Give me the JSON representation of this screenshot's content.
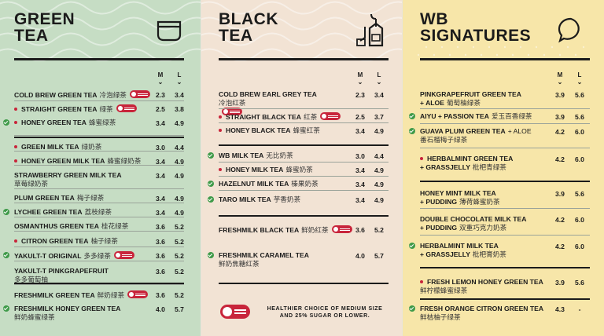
{
  "columns": [
    {
      "title_lines": [
        "GREEN",
        "TEA"
      ],
      "size_labels": [
        "M",
        "L"
      ],
      "items": [
        {
          "name": "COLD BREW GREEN TEA",
          "zh": "冷泡绿茶",
          "m": "2.3",
          "l": "3.4",
          "badge": true
        },
        {
          "name": "STRAIGHT GREEN TEA",
          "zh": "绿茶",
          "m": "2.5",
          "l": "3.8",
          "badge": true,
          "dot": true
        },
        {
          "name": "HONEY GREEN TEA",
          "zh": "蜂蜜绿茶",
          "m": "3.4",
          "l": "4.9",
          "dot": true,
          "check": true
        },
        {
          "name": "GREEN MILK TEA",
          "zh": "绿奶茶",
          "m": "3.0",
          "l": "4.4",
          "dot": true
        },
        {
          "name": "HONEY GREEN MILK TEA",
          "zh": "蜂蜜绿奶茶",
          "m": "3.4",
          "l": "4.9",
          "dot": true
        },
        {
          "name": "STRAWBERRY GREEN MILK TEA",
          "zh": "草莓绿奶茶",
          "m": "3.4",
          "l": "4.9"
        },
        {
          "name": "PLUM GREEN TEA",
          "zh": "梅子绿茶",
          "m": "3.4",
          "l": "4.9"
        },
        {
          "name": "LYCHEE GREEN TEA",
          "zh": "荔枝绿茶",
          "m": "3.4",
          "l": "4.9",
          "check": true
        },
        {
          "name": "OSMANTHUS GREEN TEA",
          "zh": "桂花绿茶",
          "m": "3.6",
          "l": "5.2"
        },
        {
          "name": "CITRON GREEN TEA",
          "zh": "柚子绿茶",
          "m": "3.6",
          "l": "5.2",
          "dot": true
        },
        {
          "name": "YAKULT-T ORIGINAL",
          "zh": "多多绿茶",
          "m": "3.6",
          "l": "5.2",
          "badge": true,
          "check": true
        },
        {
          "name": "YAKULT-T PINKGRAPEFRUIT",
          "zh": "多多葡萄柚",
          "m": "3.6",
          "l": "5.2"
        },
        {
          "name": "FRESHMILK GREEN TEA",
          "zh": "鲜奶绿茶",
          "m": "3.6",
          "l": "5.2",
          "badge": true
        },
        {
          "name": "FRESHMILK HONEY GREEN TEA",
          "zh": "鲜奶蜂蜜绿茶",
          "m": "4.0",
          "l": "5.7",
          "check": true
        }
      ]
    },
    {
      "title_lines": [
        "BLACK",
        "TEA"
      ],
      "size_labels": [
        "M",
        "L"
      ],
      "items": [
        {
          "name": "COLD BREW EARL GREY TEA",
          "zh": "冷泡红茶",
          "m": "2.3",
          "l": "3.4",
          "badge": true
        },
        {
          "name": "STRAIGHT BLACK TEA",
          "zh": "红茶",
          "m": "2.5",
          "l": "3.7",
          "badge": true,
          "dot": true
        },
        {
          "name": "HONEY BLACK TEA",
          "zh": "蜂蜜红茶",
          "m": "3.4",
          "l": "4.9",
          "dot": true
        },
        {
          "name": "WB MILK TEA",
          "zh": "无比奶茶",
          "m": "3.0",
          "l": "4.4",
          "check": true
        },
        {
          "name": "HONEY MILK TEA",
          "zh": "蜂蜜奶茶",
          "m": "3.4",
          "l": "4.9",
          "dot": true
        },
        {
          "name": "HAZELNUT MILK TEA",
          "zh": "榛果奶茶",
          "m": "3.4",
          "l": "4.9",
          "check": true
        },
        {
          "name": "TARO MILK TEA",
          "zh": "芋香奶茶",
          "m": "3.4",
          "l": "4.9",
          "check": true
        },
        {
          "name": "FRESHMILK BLACK TEA",
          "zh": "鲜奶红茶",
          "m": "3.6",
          "l": "5.2",
          "badge": true
        },
        {
          "name": "FRESHMILK CARAMEL TEA",
          "zh": "鲜奶焦糖红茶",
          "m": "4.0",
          "l": "5.7",
          "check": true
        }
      ],
      "footer": {
        "line1": "HEALTHIER CHOICE OF MEDIUM SIZE",
        "line2": "AND 25% SUGAR OR LOWER."
      }
    },
    {
      "title_lines": [
        "WB",
        "SIGNATURES"
      ],
      "size_labels": [
        "M",
        "L"
      ],
      "items": [
        {
          "name": "PINKGRAPEFRUIT GREEN TEA",
          "sub_plus": "+ ALOE",
          "zh": "葡萄柚绿茶",
          "m": "3.9",
          "l": "5.6"
        },
        {
          "name": "AIYU + PASSION TEA",
          "zh": "爱玉百香绿茶",
          "m": "3.9",
          "l": "5.6",
          "check": true
        },
        {
          "name": "GUAVA PLUM GREEN TEA",
          "name_plus": "+ ALOE",
          "zh": "番石榴梅子绿茶",
          "m": "4.2",
          "l": "6.0",
          "check": true
        },
        {
          "name": "HERBALMINT GREEN TEA",
          "sub_plus": "+ GRASSJELLY",
          "zh": "枇杷青绿茶",
          "m": "4.2",
          "l": "6.0",
          "dot": true
        },
        {
          "name": "HONEY MINT MILK TEA",
          "sub_plus": "+ PUDDING",
          "zh": "薄荷蜂蜜奶茶",
          "m": "3.9",
          "l": "5.6"
        },
        {
          "name": "DOUBLE CHOCOLATE MILK TEA",
          "sub_plus": "+ PUDDING",
          "zh": "双重巧克力奶茶",
          "m": "4.2",
          "l": "6.0"
        },
        {
          "name": "HERBALMINT MILK TEA",
          "sub_plus": "+ GRASSJELLY",
          "zh": "枇杷膏奶茶",
          "m": "4.2",
          "l": "6.0",
          "check": true
        },
        {
          "name": "FRESH LEMON HONEY GREEN TEA",
          "zh": "鲜柠檬蜂蜜绿茶",
          "m": "3.9",
          "l": "5.6",
          "dot": true
        },
        {
          "name": "FRESH ORANGE CITRON GREEN TEA",
          "zh": "鲜桔柚子绿茶",
          "m": "4.3",
          "l": "-",
          "check": true
        }
      ]
    }
  ],
  "colors": {
    "green_panel": "#c6ddc4",
    "black_panel": "#f2e3d4",
    "signature_panel": "#f7e6a9",
    "badge_red": "#c8253b",
    "check_green": "#3f9a49"
  },
  "icons": [
    "cup-icon",
    "teabag-icon",
    "speech-bubble-icon",
    "lower-sugar-badge-icon",
    "check-icon",
    "dot-icon"
  ]
}
